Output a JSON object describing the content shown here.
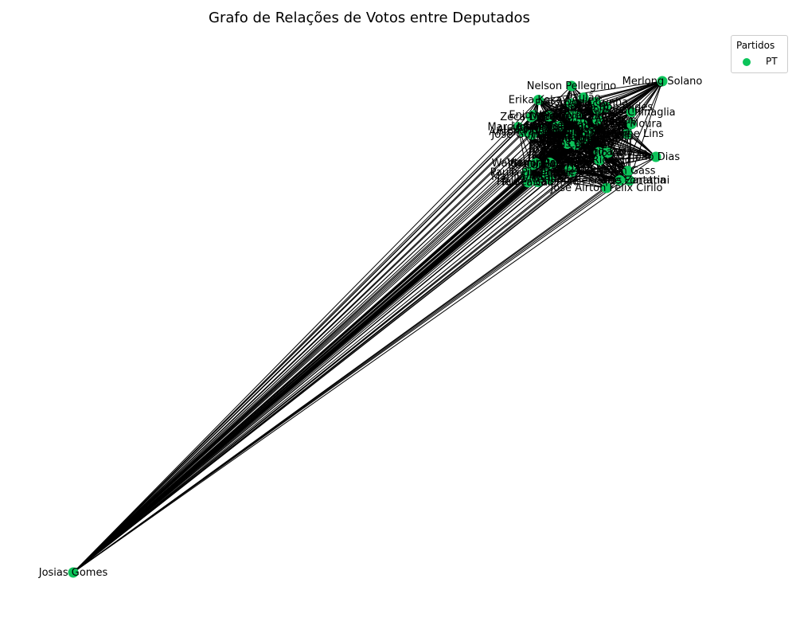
{
  "title": "Grafo de Relações de Votos entre Deputados",
  "legend": {
    "title": "Partidos",
    "entries": [
      {
        "label": "PT",
        "color": "#0cc45a"
      }
    ]
  },
  "node_color": "#0cc45a",
  "edge_color": "#000000",
  "nodes": [
    "Josias Gomes",
    "Merlong Solano",
    "Nelson Pellegrino",
    "Assis Carvalho",
    "Zeca Dirceu",
    "Afonso Florence",
    "Paulo Pimenta",
    "Alencar Santana",
    "Gleisi Hoffmann",
    "Odair Cunha",
    "Vander Loubet",
    "Maria do Rosário",
    "Reginaldo Lopes",
    "Erika Kokay",
    "Carlos Zarattini",
    "José Guimarães",
    "Arlindo Chinaglia",
    "Rubens Otoni",
    "Patrus Ananias",
    "Helder Salomão",
    "Zé Neto",
    "Benedita da Silva",
    "Waldenor Pereira",
    "Leonardo Monteiro",
    "Marília Arraes",
    "Paulo Teixeira",
    "Pedro Uczai",
    "Carlos Veras",
    "Rogério Correia",
    "Enio Verri",
    "Frei Anastácio",
    "Airton Faleiro",
    "Beto Faro",
    "Célio Moura",
    "Padre João",
    "Luizianne Lins",
    "José Airton Félix Cirilo",
    "João Daniel",
    "Jorge Solla",
    "Marcon",
    "Natália Bonavides",
    "Valmir Assunção",
    "Henrique Fontana",
    "Bohn Gass",
    "Nilto Tatto",
    "Paulão",
    "Joseildo Ramos",
    "Alexandre Padilha",
    "José Ricardo",
    "Vicentinho",
    "Marcio Jerry",
    "Dionilso Marcon",
    "Rui Falcão",
    "Leo de Brito",
    "Joenia Wapichana",
    "Zé Carlos",
    "João Dias"
  ]
}
